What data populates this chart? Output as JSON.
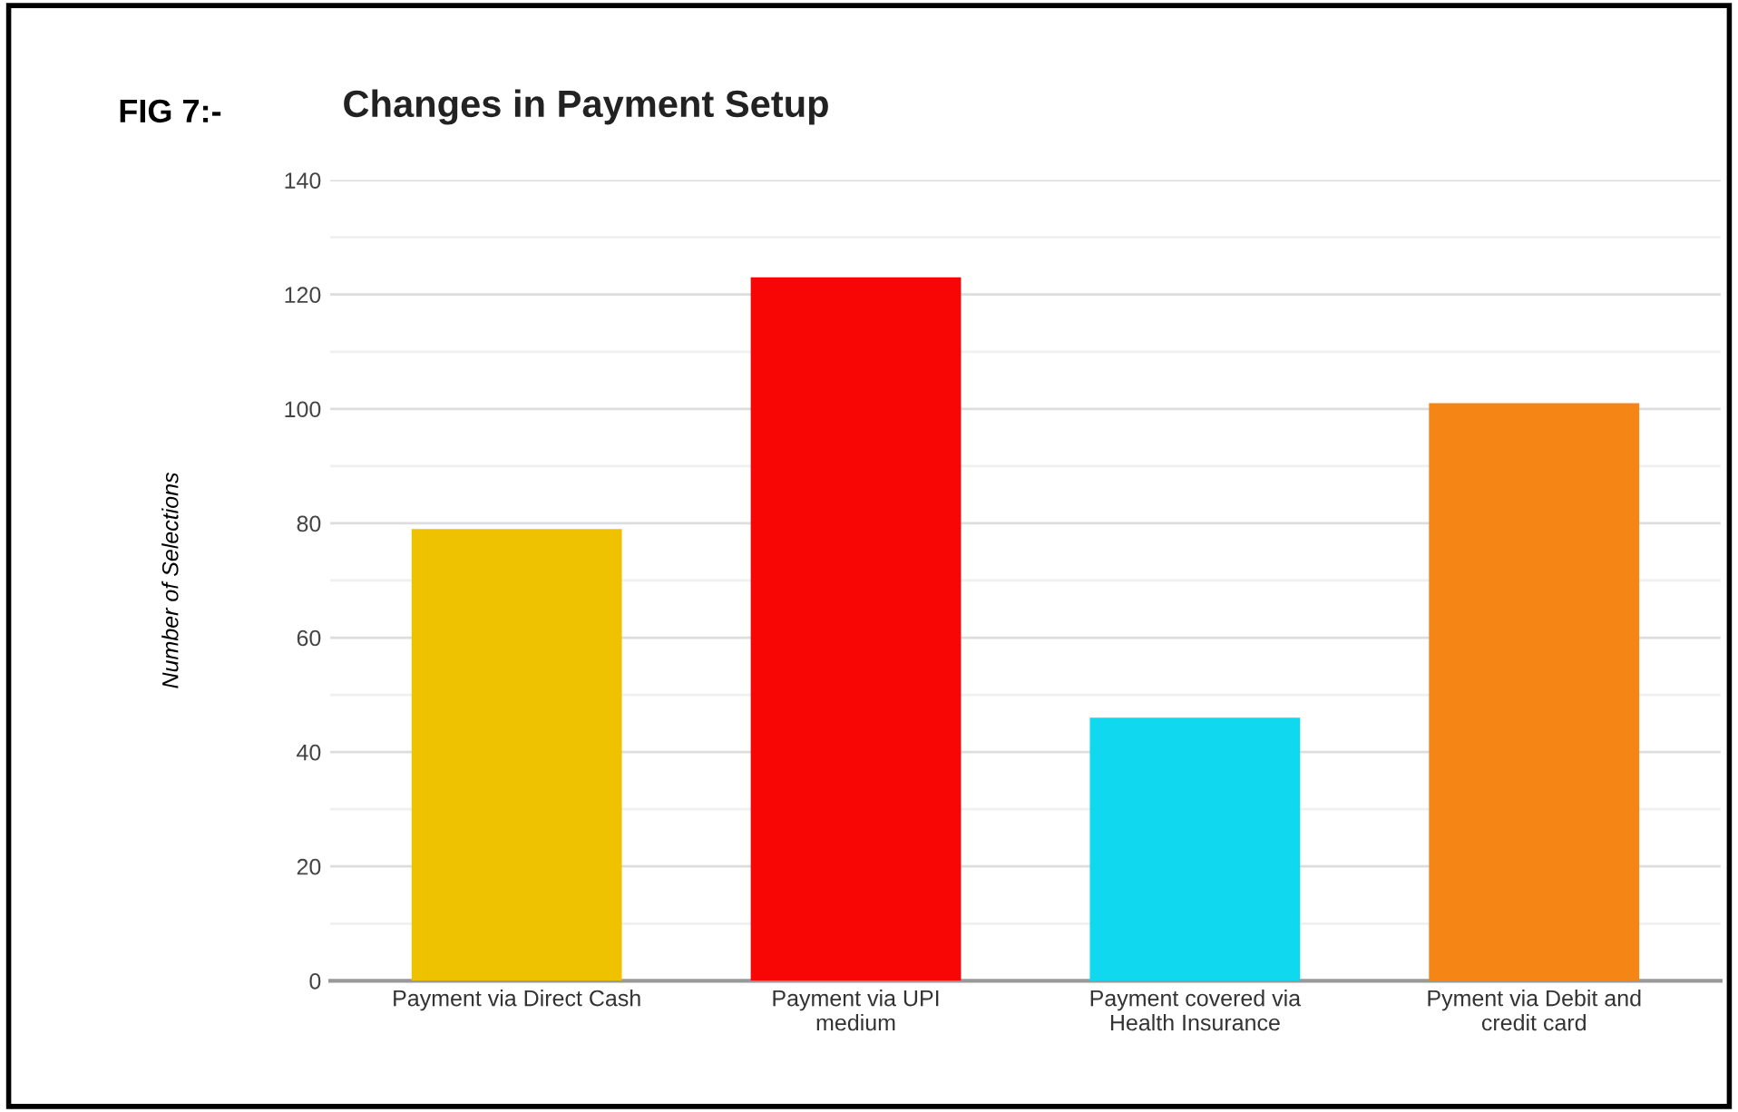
{
  "chart_data": {
    "type": "bar",
    "title": "Changes in Payment Setup",
    "ylabel": "Number of Selections",
    "annotations": [
      "FIG 7:-"
    ],
    "categories": [
      "Payment via Direct Cash",
      "Payment via UPI\nmedium",
      "Payment covered via\nHealth Insurance",
      "Pyment via Debit and\ncredit card"
    ],
    "values": [
      79,
      123,
      46,
      101
    ],
    "colors": [
      "#efc200",
      "#f80506",
      "#10d8ef",
      "#f58514"
    ],
    "ylim": [
      0,
      140
    ],
    "yticks": [
      0,
      20,
      40,
      60,
      80,
      100,
      120,
      140
    ],
    "grid": "y"
  }
}
